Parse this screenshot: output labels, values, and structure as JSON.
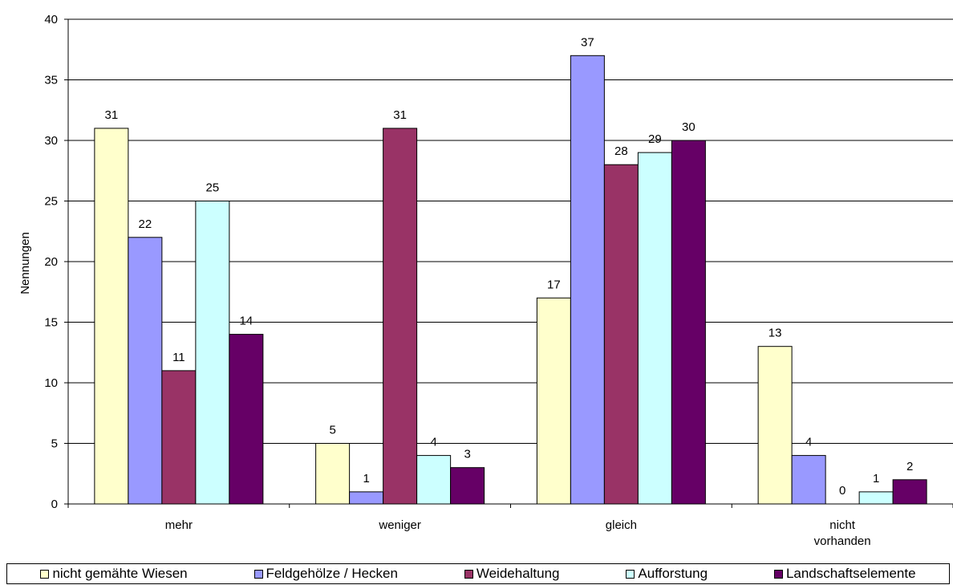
{
  "chart_data": {
    "type": "bar",
    "categories": [
      "mehr",
      "weniger",
      "gleich",
      "nicht vorhanden"
    ],
    "series": [
      {
        "name": "nicht gemähte Wiesen",
        "values": [
          31,
          5,
          17,
          13
        ],
        "color": "#FFFFCC"
      },
      {
        "name": "Feldgehölze / Hecken",
        "values": [
          22,
          1,
          37,
          4
        ],
        "color": "#9999FF"
      },
      {
        "name": "Weidehaltung",
        "values": [
          11,
          31,
          28,
          0
        ],
        "color": "#993366"
      },
      {
        "name": "Aufforstung",
        "values": [
          25,
          4,
          29,
          1
        ],
        "color": "#CCFFFF"
      },
      {
        "name": "Landschaftselemente",
        "values": [
          14,
          3,
          30,
          2
        ],
        "color": "#660066"
      }
    ],
    "ylabel": "Nennungen",
    "ylim": [
      0,
      40
    ],
    "yticks": [
      0,
      5,
      10,
      15,
      20,
      25,
      30,
      35,
      40
    ],
    "grid": true,
    "legend_position": "bottom"
  }
}
